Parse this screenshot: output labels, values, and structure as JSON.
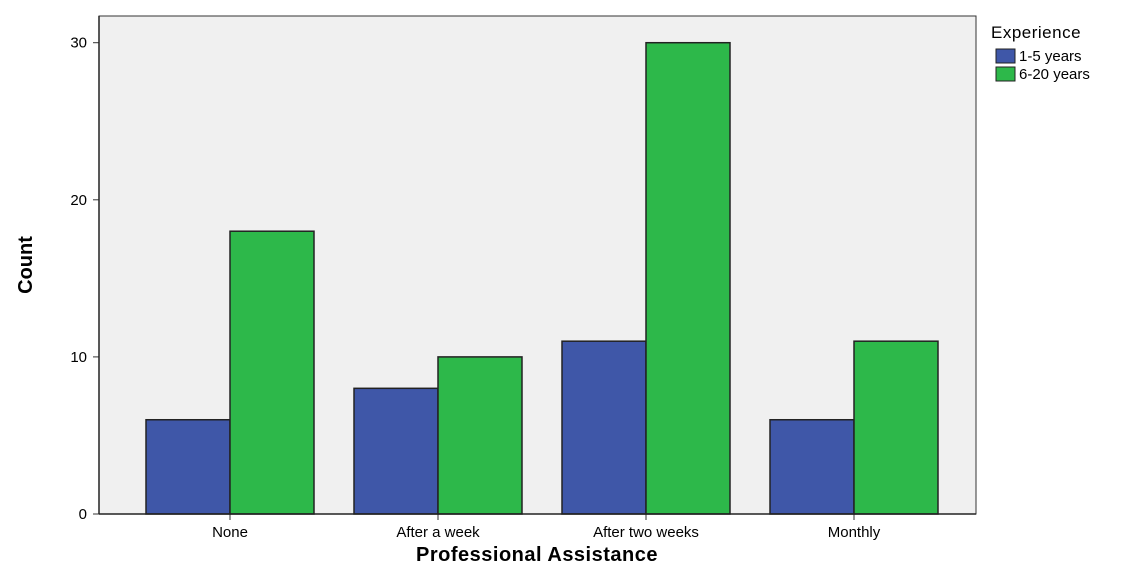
{
  "chart_data": {
    "type": "bar",
    "title": "",
    "xlabel": "Professional Assistance",
    "ylabel": "Count",
    "categories": [
      "None",
      "After a week",
      "After two weeks",
      "Monthly"
    ],
    "series": [
      {
        "name": "1-5 years",
        "values": [
          6,
          8,
          11,
          6
        ],
        "color": "#3f57a8"
      },
      {
        "name": "6-20 years",
        "values": [
          18,
          10,
          30,
          11
        ],
        "color": "#2db84a"
      }
    ],
    "ylim": [
      0,
      31.7
    ],
    "yticks": [
      0,
      10,
      20,
      30
    ],
    "ytick_labels": [
      "0",
      "10",
      "20",
      "30"
    ],
    "grid": false,
    "plot_background": "#f0f0f0",
    "legend": {
      "title": "Experience",
      "position": "top-right-outside"
    }
  }
}
